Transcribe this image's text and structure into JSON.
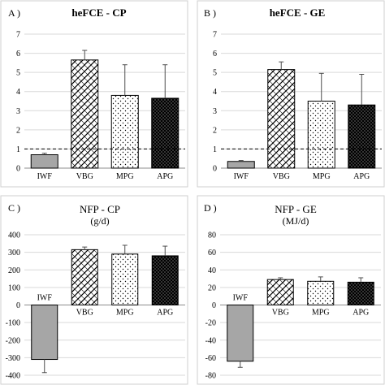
{
  "chart_data": [
    {
      "type": "bar",
      "panel_label": "A )",
      "title": "heFCE - CP",
      "subtitle": "",
      "categories": [
        "IWF",
        "VBG",
        "MPG",
        "APG"
      ],
      "values": [
        0.7,
        5.65,
        3.8,
        3.65
      ],
      "errors": [
        0.08,
        0.5,
        1.6,
        1.75
      ],
      "ylim": [
        0,
        7
      ],
      "yticks": [
        0,
        1,
        2,
        3,
        4,
        5,
        6,
        7
      ],
      "reference_line": 1,
      "category_labels_at": "bottom",
      "grid": true
    },
    {
      "type": "bar",
      "panel_label": "B )",
      "title": "heFCE - GE",
      "subtitle": "",
      "categories": [
        "IWF",
        "VBG",
        "MPG",
        "APG"
      ],
      "values": [
        0.35,
        5.15,
        3.5,
        3.3
      ],
      "errors": [
        0.05,
        0.4,
        1.45,
        1.6
      ],
      "ylim": [
        0,
        7
      ],
      "yticks": [
        0,
        1,
        2,
        3,
        4,
        5,
        6,
        7
      ],
      "reference_line": 1,
      "category_labels_at": "bottom",
      "grid": true
    },
    {
      "type": "bar",
      "panel_label": "C )",
      "title": "NFP - CP",
      "subtitle": "(g/d)",
      "categories": [
        "IWF",
        "VBG",
        "MPG",
        "APG"
      ],
      "values": [
        -310,
        315,
        290,
        280
      ],
      "errors": [
        75,
        15,
        50,
        55
      ],
      "ylim": [
        -400,
        400
      ],
      "yticks": [
        -400,
        -300,
        -200,
        -100,
        0,
        100,
        200,
        300,
        400
      ],
      "reference_line": null,
      "category_labels_at": "zero",
      "grid": true
    },
    {
      "type": "bar",
      "panel_label": "D )",
      "title": "NFP - GE",
      "subtitle": "(MJ/d)",
      "categories": [
        "IWF",
        "VBG",
        "MPG",
        "APG"
      ],
      "values": [
        -64,
        29,
        27,
        26
      ],
      "errors": [
        7,
        2,
        5,
        5
      ],
      "ylim": [
        -80,
        80
      ],
      "yticks": [
        -80,
        -60,
        -40,
        -20,
        0,
        20,
        40,
        60,
        80
      ],
      "reference_line": null,
      "category_labels_at": "zero",
      "grid": true
    }
  ],
  "styles": {
    "bar_patterns": [
      "solid-gray",
      "brick-crosshatch",
      "sparse-dots",
      "dense-dots"
    ],
    "colors": {
      "iwf_fill": "#a6a6a6",
      "apg_fill": "#000000",
      "grid": "#d9d9d9",
      "frame": "#cfcfcf"
    }
  }
}
